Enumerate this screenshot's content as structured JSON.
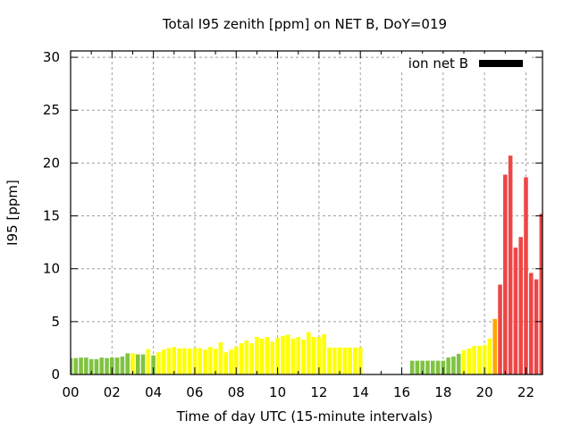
{
  "chart_data": {
    "type": "bar",
    "title": "Total I95 zenith [ppm] on NET B, DoY=019",
    "xlabel": "Time of day UTC (15-minute intervals)",
    "ylabel": "I95 [ppm]",
    "xlim": [
      0,
      22.8
    ],
    "ylim": [
      0,
      30.6
    ],
    "x_tick_labels": [
      "00",
      "02",
      "04",
      "06",
      "08",
      "10",
      "12",
      "14",
      "16",
      "18",
      "20",
      "22"
    ],
    "x_ticks": [
      0,
      2,
      4,
      6,
      8,
      10,
      12,
      14,
      16,
      18,
      20,
      22
    ],
    "y_ticks": [
      0,
      5,
      10,
      15,
      20,
      25,
      30
    ],
    "grid": true,
    "legend": {
      "label": "ion net B",
      "color": "#000000",
      "placement": "top-right"
    },
    "interval_hours": 0.25,
    "colors": {
      "green": "#80c342",
      "yellow": "#ffff00",
      "orange": "#ffa500",
      "red": "#ee4646"
    },
    "series": [
      {
        "name": "ion net B",
        "points": [
          {
            "x": 0.0,
            "y": 1.55,
            "c": "green"
          },
          {
            "x": 0.25,
            "y": 1.55,
            "c": "green"
          },
          {
            "x": 0.5,
            "y": 1.6,
            "c": "green"
          },
          {
            "x": 0.75,
            "y": 1.6,
            "c": "green"
          },
          {
            "x": 1.0,
            "y": 1.45,
            "c": "green"
          },
          {
            "x": 1.25,
            "y": 1.45,
            "c": "green"
          },
          {
            "x": 1.5,
            "y": 1.6,
            "c": "green"
          },
          {
            "x": 1.75,
            "y": 1.55,
            "c": "green"
          },
          {
            "x": 2.0,
            "y": 1.6,
            "c": "green"
          },
          {
            "x": 2.25,
            "y": 1.6,
            "c": "green"
          },
          {
            "x": 2.5,
            "y": 1.7,
            "c": "green"
          },
          {
            "x": 2.75,
            "y": 2.0,
            "c": "green"
          },
          {
            "x": 3.0,
            "y": 2.0,
            "c": "yellow"
          },
          {
            "x": 3.25,
            "y": 1.9,
            "c": "green"
          },
          {
            "x": 3.5,
            "y": 1.9,
            "c": "green"
          },
          {
            "x": 3.75,
            "y": 2.4,
            "c": "yellow"
          },
          {
            "x": 4.0,
            "y": 1.8,
            "c": "green"
          },
          {
            "x": 4.25,
            "y": 2.1,
            "c": "yellow"
          },
          {
            "x": 4.5,
            "y": 2.35,
            "c": "yellow"
          },
          {
            "x": 4.75,
            "y": 2.5,
            "c": "yellow"
          },
          {
            "x": 5.0,
            "y": 2.6,
            "c": "yellow"
          },
          {
            "x": 5.25,
            "y": 2.45,
            "c": "yellow"
          },
          {
            "x": 5.5,
            "y": 2.5,
            "c": "yellow"
          },
          {
            "x": 5.75,
            "y": 2.45,
            "c": "yellow"
          },
          {
            "x": 6.0,
            "y": 2.5,
            "c": "yellow"
          },
          {
            "x": 6.25,
            "y": 2.5,
            "c": "yellow"
          },
          {
            "x": 6.5,
            "y": 2.35,
            "c": "yellow"
          },
          {
            "x": 6.75,
            "y": 2.6,
            "c": "yellow"
          },
          {
            "x": 7.0,
            "y": 2.45,
            "c": "yellow"
          },
          {
            "x": 7.25,
            "y": 3.05,
            "c": "yellow"
          },
          {
            "x": 7.5,
            "y": 2.1,
            "c": "yellow"
          },
          {
            "x": 7.75,
            "y": 2.35,
            "c": "yellow"
          },
          {
            "x": 8.0,
            "y": 2.6,
            "c": "yellow"
          },
          {
            "x": 8.25,
            "y": 2.95,
            "c": "yellow"
          },
          {
            "x": 8.5,
            "y": 3.2,
            "c": "yellow"
          },
          {
            "x": 8.75,
            "y": 2.95,
            "c": "yellow"
          },
          {
            "x": 9.0,
            "y": 3.55,
            "c": "yellow"
          },
          {
            "x": 9.25,
            "y": 3.4,
            "c": "yellow"
          },
          {
            "x": 9.5,
            "y": 3.55,
            "c": "yellow"
          },
          {
            "x": 9.75,
            "y": 3.1,
            "c": "yellow"
          },
          {
            "x": 10.0,
            "y": 3.45,
            "c": "yellow"
          },
          {
            "x": 10.25,
            "y": 3.65,
            "c": "yellow"
          },
          {
            "x": 10.5,
            "y": 3.75,
            "c": "yellow"
          },
          {
            "x": 10.75,
            "y": 3.4,
            "c": "yellow"
          },
          {
            "x": 11.0,
            "y": 3.55,
            "c": "yellow"
          },
          {
            "x": 11.25,
            "y": 3.3,
            "c": "yellow"
          },
          {
            "x": 11.5,
            "y": 4.0,
            "c": "yellow"
          },
          {
            "x": 11.75,
            "y": 3.55,
            "c": "yellow"
          },
          {
            "x": 12.0,
            "y": 3.55,
            "c": "yellow"
          },
          {
            "x": 12.25,
            "y": 3.8,
            "c": "yellow"
          },
          {
            "x": 12.5,
            "y": 2.55,
            "c": "yellow"
          },
          {
            "x": 12.75,
            "y": 2.55,
            "c": "yellow"
          },
          {
            "x": 13.0,
            "y": 2.55,
            "c": "yellow"
          },
          {
            "x": 13.25,
            "y": 2.55,
            "c": "yellow"
          },
          {
            "x": 13.5,
            "y": 2.55,
            "c": "yellow"
          },
          {
            "x": 13.75,
            "y": 2.55,
            "c": "yellow"
          },
          {
            "x": 14.0,
            "y": 2.55,
            "c": "yellow"
          },
          {
            "x": 16.5,
            "y": 1.3,
            "c": "green"
          },
          {
            "x": 16.75,
            "y": 1.3,
            "c": "green"
          },
          {
            "x": 17.0,
            "y": 1.3,
            "c": "green"
          },
          {
            "x": 17.25,
            "y": 1.3,
            "c": "green"
          },
          {
            "x": 17.5,
            "y": 1.3,
            "c": "green"
          },
          {
            "x": 17.75,
            "y": 1.3,
            "c": "green"
          },
          {
            "x": 18.0,
            "y": 1.3,
            "c": "green"
          },
          {
            "x": 18.25,
            "y": 1.6,
            "c": "green"
          },
          {
            "x": 18.5,
            "y": 1.7,
            "c": "green"
          },
          {
            "x": 18.75,
            "y": 1.95,
            "c": "green"
          },
          {
            "x": 19.0,
            "y": 2.3,
            "c": "yellow"
          },
          {
            "x": 19.25,
            "y": 2.45,
            "c": "yellow"
          },
          {
            "x": 19.5,
            "y": 2.7,
            "c": "yellow"
          },
          {
            "x": 19.75,
            "y": 2.7,
            "c": "yellow"
          },
          {
            "x": 20.0,
            "y": 2.8,
            "c": "yellow"
          },
          {
            "x": 20.25,
            "y": 3.4,
            "c": "yellow"
          },
          {
            "x": 20.5,
            "y": 5.25,
            "c": "orange"
          },
          {
            "x": 20.75,
            "y": 8.5,
            "c": "red"
          },
          {
            "x": 21.0,
            "y": 18.9,
            "c": "red"
          },
          {
            "x": 21.25,
            "y": 20.7,
            "c": "red"
          },
          {
            "x": 21.5,
            "y": 12.0,
            "c": "red"
          },
          {
            "x": 21.75,
            "y": 13.0,
            "c": "red"
          },
          {
            "x": 22.0,
            "y": 18.65,
            "c": "red"
          },
          {
            "x": 22.25,
            "y": 9.6,
            "c": "red"
          },
          {
            "x": 22.5,
            "y": 9.0,
            "c": "red"
          },
          {
            "x": 22.75,
            "y": 15.2,
            "c": "red"
          }
        ]
      }
    ]
  }
}
